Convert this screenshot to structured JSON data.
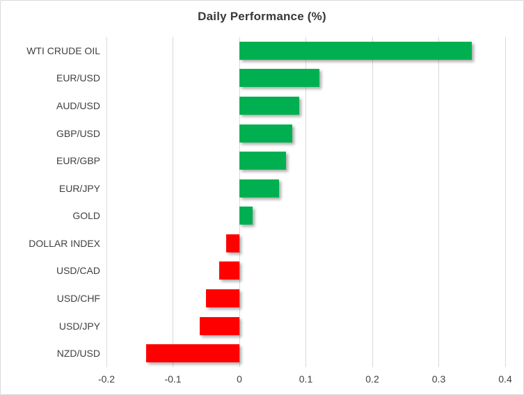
{
  "title": "Daily Performance (%)",
  "colors": {
    "positive_bar": "#00b050",
    "negative_bar": "#ff0000",
    "gridline": "#d9d9d9",
    "frame_border": "#d9d9d9",
    "title_text": "#383838",
    "label_text": "#404040"
  },
  "chart_data": {
    "type": "bar",
    "orientation": "horizontal",
    "title": "Daily Performance (%)",
    "categories": [
      "WTI CRUDE OIL",
      "EUR/USD",
      "AUD/USD",
      "GBP/USD",
      "EUR/GBP",
      "EUR/JPY",
      "GOLD",
      "DOLLAR INDEX",
      "USD/CAD",
      "USD/CHF",
      "USD/JPY",
      "NZD/USD"
    ],
    "values": [
      0.35,
      0.12,
      0.09,
      0.08,
      0.07,
      0.06,
      0.02,
      -0.02,
      -0.03,
      -0.05,
      -0.06,
      -0.14
    ],
    "xlabel": "",
    "ylabel": "",
    "xlim": [
      -0.2,
      0.4
    ],
    "x_ticks": [
      -0.2,
      -0.1,
      0,
      0.1,
      0.2,
      0.3,
      0.4
    ],
    "x_tick_labels": [
      "-0.2",
      "-0.1",
      "0",
      "0.1",
      "0.2",
      "0.3",
      "0.4"
    ],
    "grid": true,
    "legend": "none",
    "bar_color_rule": "green if positive, red if negative"
  }
}
